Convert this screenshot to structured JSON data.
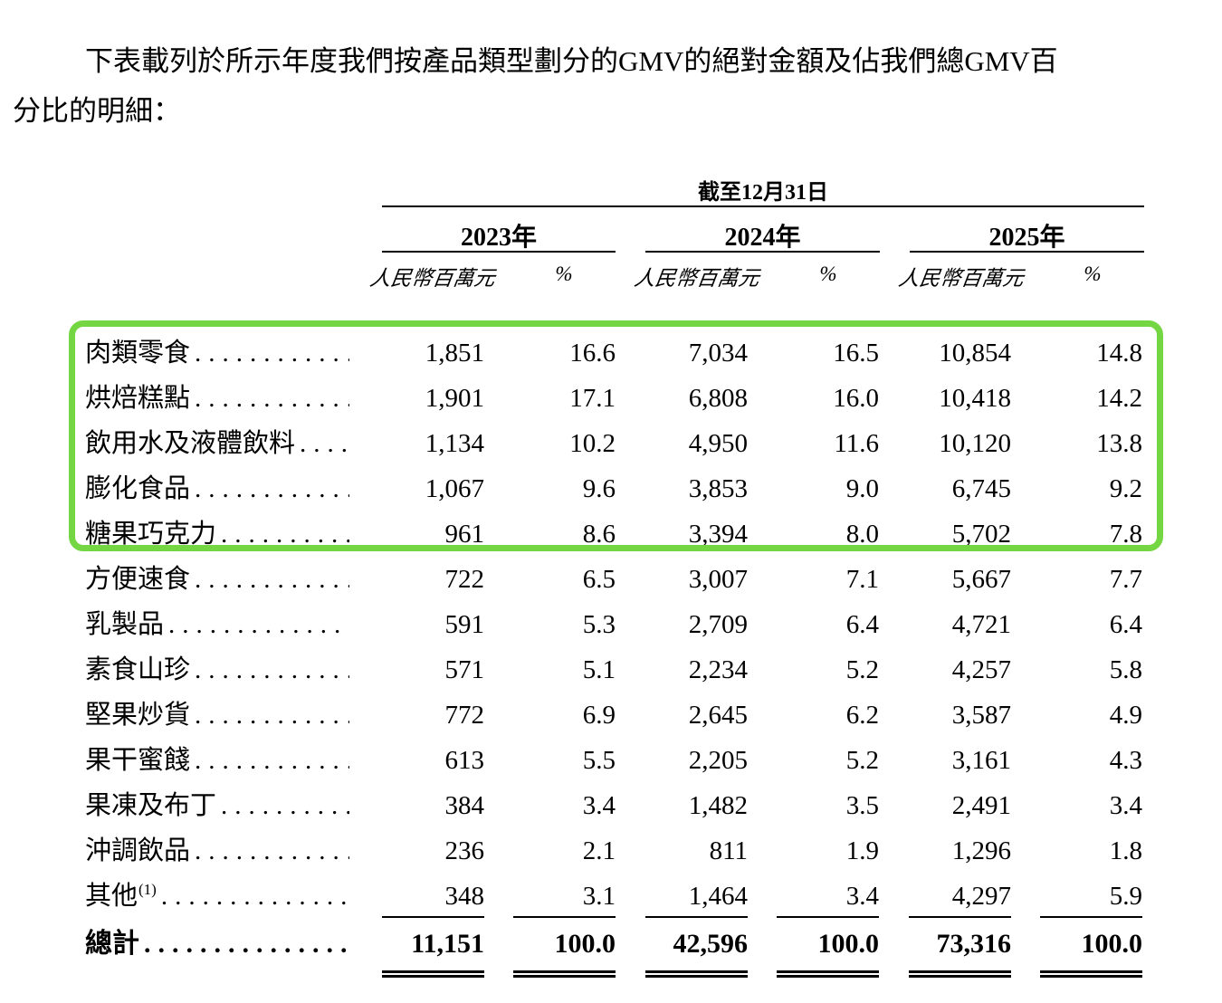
{
  "page": {
    "background": "#ffffff",
    "text_color": "#000000",
    "highlight_color": "#75d643"
  },
  "intro": {
    "line1": "下表載列於所示年度我們按產品類型劃分的GMV的絕對金額及佔我們總GMV百",
    "line2": "分比的明細："
  },
  "table": {
    "date_header": "截至12月31日",
    "years": [
      "2023年",
      "2024年",
      "2025年"
    ],
    "unit_label": "人民幣百萬元",
    "pct_label": "%",
    "dot_leader": "............................................................",
    "highlighted_row_count": 5,
    "rows": [
      {
        "label": "肉類零食",
        "values": [
          "1,851",
          "16.6",
          "7,034",
          "16.5",
          "10,854",
          "14.8"
        ]
      },
      {
        "label": "烘焙糕點",
        "values": [
          "1,901",
          "17.1",
          "6,808",
          "16.0",
          "10,418",
          "14.2"
        ]
      },
      {
        "label": "飲用水及液體飲料",
        "values": [
          "1,134",
          "10.2",
          "4,950",
          "11.6",
          "10,120",
          "13.8"
        ]
      },
      {
        "label": "膨化食品",
        "values": [
          "1,067",
          "9.6",
          "3,853",
          "9.0",
          "6,745",
          "9.2"
        ]
      },
      {
        "label": "糖果巧克力",
        "values": [
          "961",
          "8.6",
          "3,394",
          "8.0",
          "5,702",
          "7.8"
        ]
      },
      {
        "label": "方便速食",
        "values": [
          "722",
          "6.5",
          "3,007",
          "7.1",
          "5,667",
          "7.7"
        ]
      },
      {
        "label": "乳製品",
        "values": [
          "591",
          "5.3",
          "2,709",
          "6.4",
          "4,721",
          "6.4"
        ]
      },
      {
        "label": "素食山珍",
        "values": [
          "571",
          "5.1",
          "2,234",
          "5.2",
          "4,257",
          "5.8"
        ]
      },
      {
        "label": "堅果炒貨",
        "values": [
          "772",
          "6.9",
          "2,645",
          "6.2",
          "3,587",
          "4.9"
        ]
      },
      {
        "label": "果干蜜餞",
        "values": [
          "613",
          "5.5",
          "2,205",
          "5.2",
          "3,161",
          "4.3"
        ]
      },
      {
        "label": "果凍及布丁",
        "values": [
          "384",
          "3.4",
          "1,482",
          "3.5",
          "2,491",
          "3.4"
        ]
      },
      {
        "label": "沖調飲品",
        "values": [
          "236",
          "2.1",
          "811",
          "1.9",
          "1,296",
          "1.8"
        ]
      },
      {
        "label": "其他",
        "sup": "(1)",
        "values": [
          "348",
          "3.1",
          "1,464",
          "3.4",
          "4,297",
          "5.9"
        ]
      }
    ],
    "total": {
      "label": "總計",
      "values": [
        "11,151",
        "100.0",
        "42,596",
        "100.0",
        "73,316",
        "100.0"
      ]
    }
  }
}
